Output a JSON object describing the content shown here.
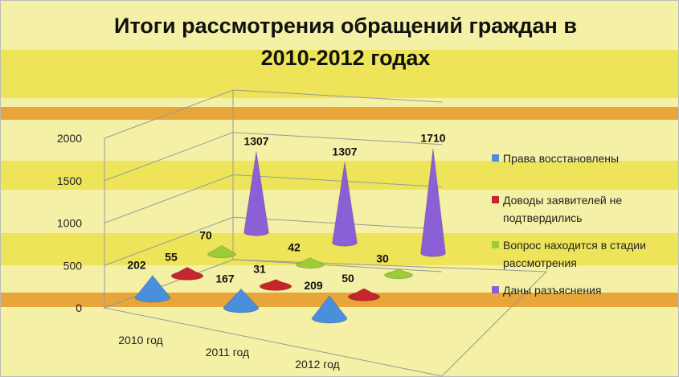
{
  "chart_data": {
    "type": "cone3d",
    "title": "Итоги рассмотрения обращений граждан в 2010-2012 годах",
    "categories": [
      "2010 год",
      "2011 год",
      "2012 год"
    ],
    "series": [
      {
        "name": "Права восстановлены",
        "color": "#4a8fdc",
        "values": [
          202,
          167,
          209
        ]
      },
      {
        "name": "Доводы заявителей не подтвердились",
        "color": "#c4262b",
        "values": [
          55,
          31,
          50
        ]
      },
      {
        "name": "Вопрос находится в стадии рассмотрения",
        "color": "#9ccc3a",
        "values": [
          70,
          42,
          30
        ]
      },
      {
        "name": "Даны разъяснения",
        "color": "#8b5fd6",
        "values": [
          1307,
          1307,
          1710
        ]
      }
    ],
    "ylim": [
      0,
      2000
    ],
    "yticks": [
      0,
      500,
      1000,
      1500,
      2000
    ],
    "grid": true,
    "legend": "right"
  }
}
